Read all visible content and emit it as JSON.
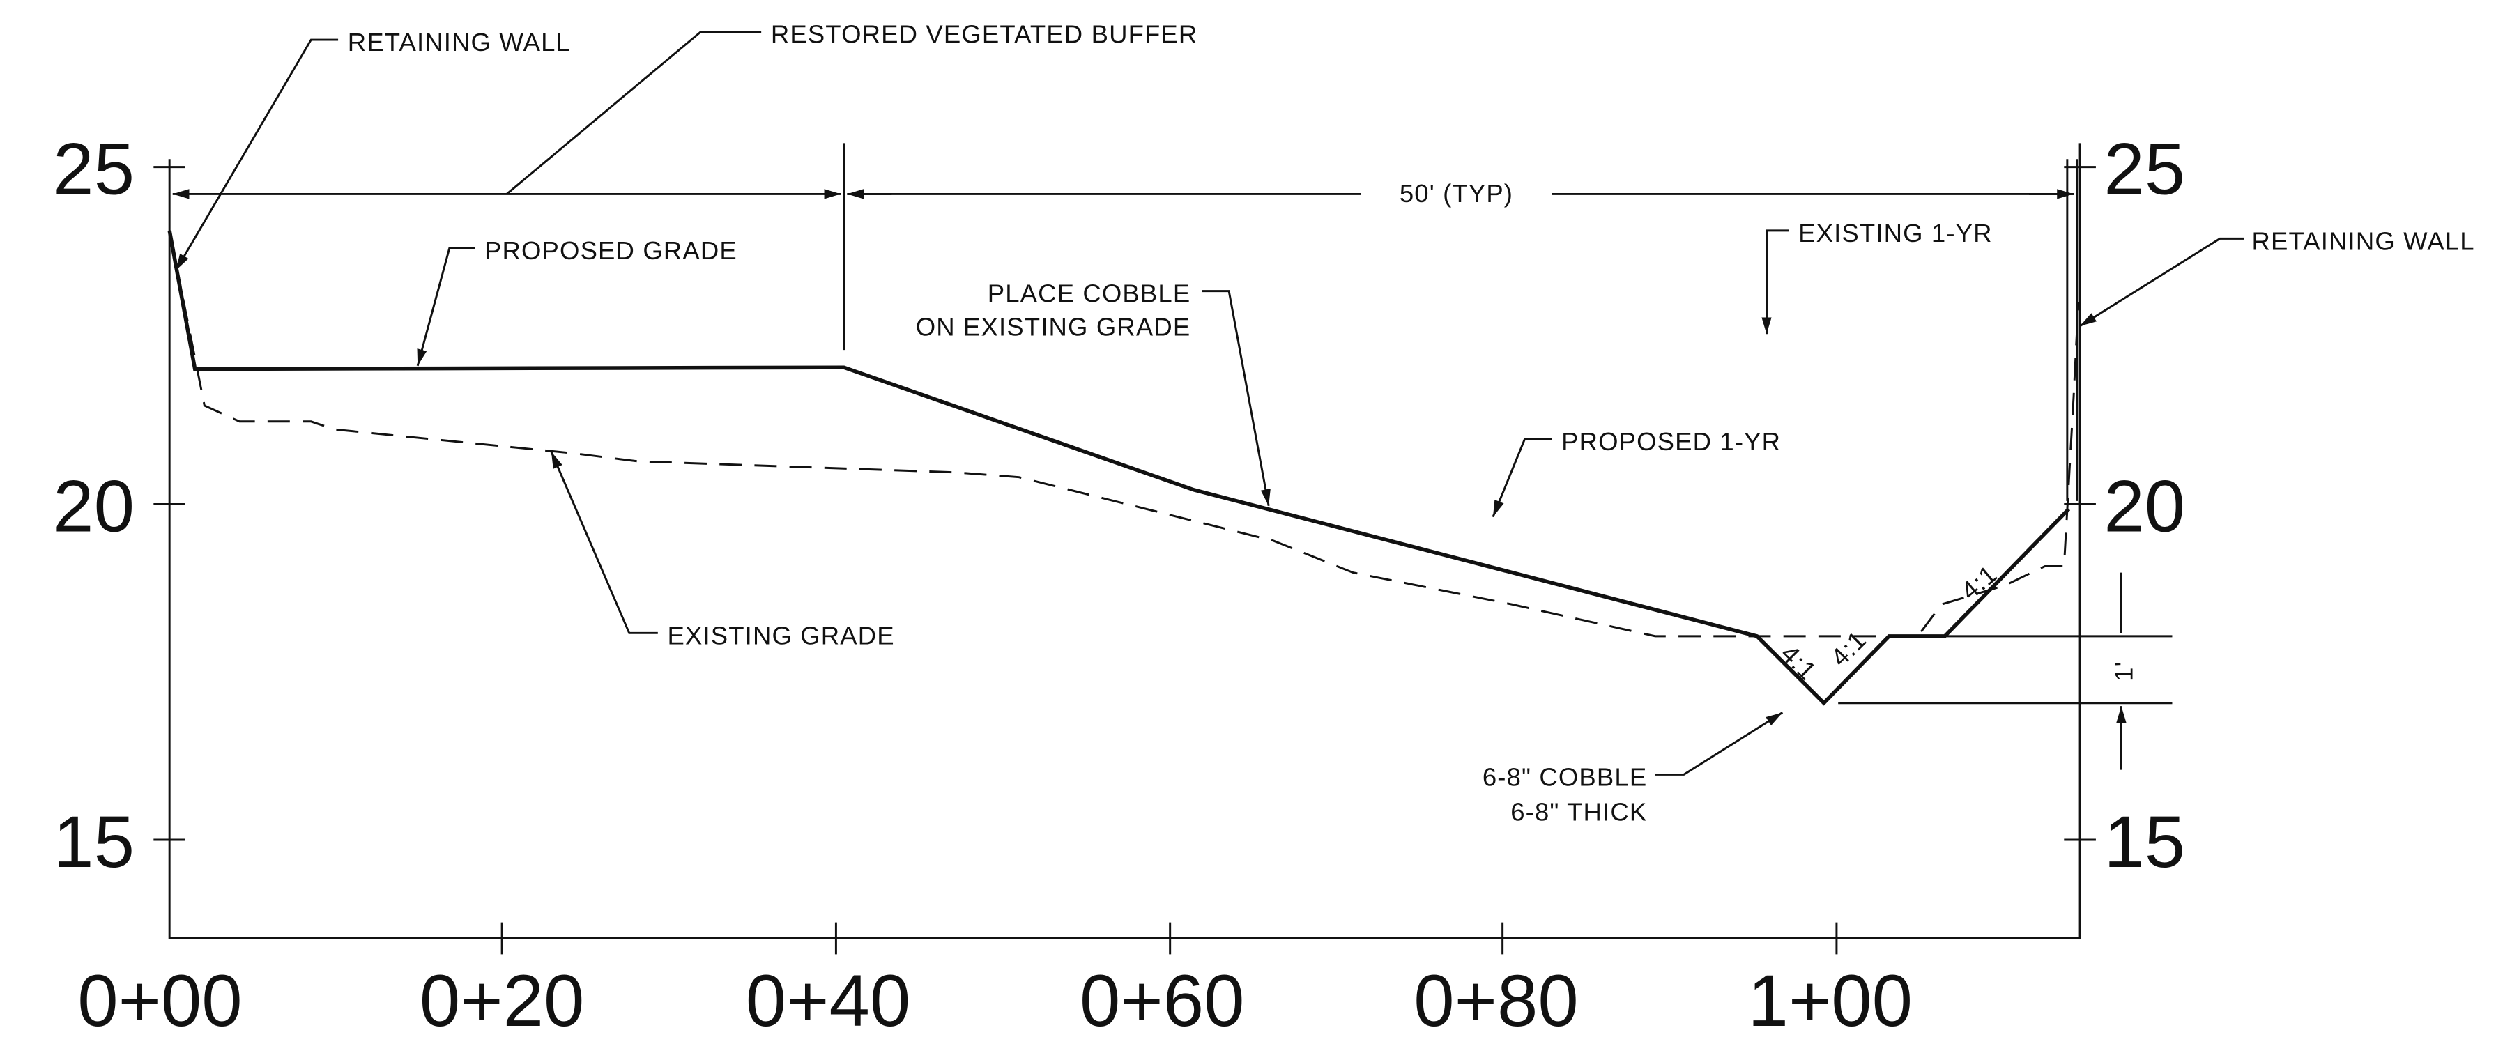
{
  "elevations": {
    "left": [
      25,
      20,
      15
    ],
    "right": [
      25,
      20,
      15
    ]
  },
  "stations": [
    "0+00",
    "0+20",
    "0+40",
    "0+60",
    "0+80",
    "1+00"
  ],
  "labels": {
    "retaining_wall_left": "RETAINING WALL",
    "restored_buffer": "RESTORED VEGETATED BUFFER",
    "dimension": "50' (TYP)",
    "proposed_grade": "PROPOSED GRADE",
    "place_cobble": [
      "PLACE COBBLE",
      "ON EXISTING GRADE"
    ],
    "existing_grade": "EXISTING GRADE",
    "existing_1yr": "EXISTING 1-YR",
    "proposed_1yr": "PROPOSED 1-YR",
    "retaining_wall_right": "RETAINING WALL",
    "cobble": [
      "6-8\" COBBLE",
      "6-8\" THICK"
    ],
    "slopes": [
      "4:1",
      "4:1",
      "4:1"
    ],
    "one_foot": "1'"
  }
}
